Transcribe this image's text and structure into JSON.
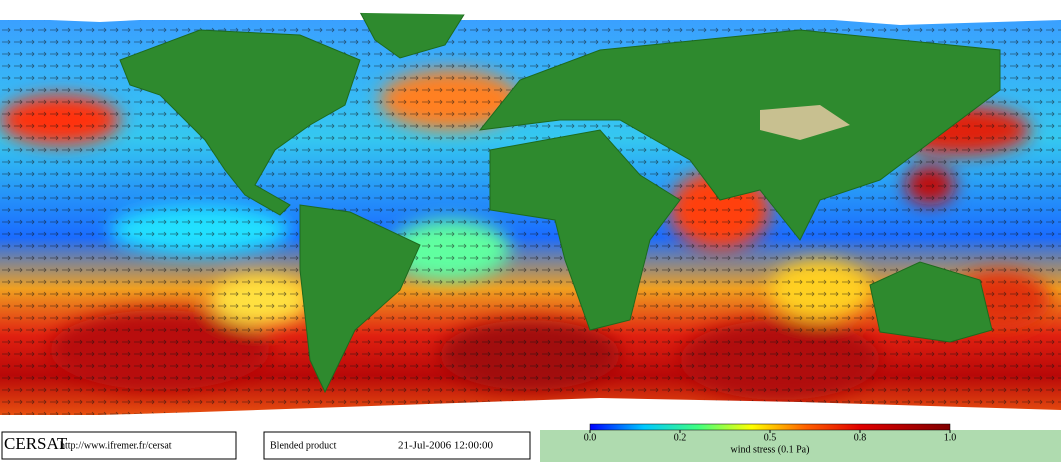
{
  "footer": {
    "logo": "CERSAT",
    "url": "http://www.ifremer.fr/cersat",
    "product": "Blended product",
    "date": "21-Jul-2006 12:00:00"
  },
  "colorbar": {
    "ticks": [
      {
        "value": 0,
        "label": "0.0"
      },
      {
        "value": 0.2,
        "label": "0.2"
      },
      {
        "value": 0.5,
        "label": "0.5"
      },
      {
        "value": 0.8,
        "label": "0.8"
      },
      {
        "value": 1,
        "label": "1.0"
      }
    ],
    "label": "wind stress (0.1 Pa)"
  }
}
